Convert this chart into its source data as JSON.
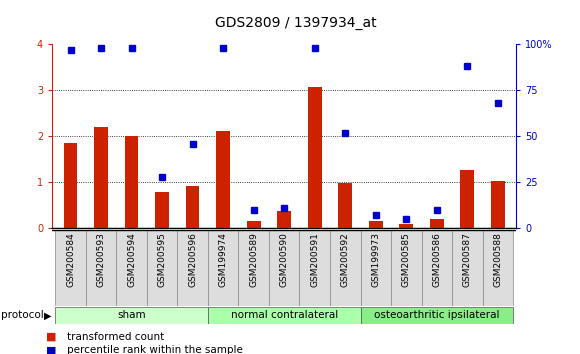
{
  "title": "GDS2809 / 1397934_at",
  "samples": [
    "GSM200584",
    "GSM200593",
    "GSM200594",
    "GSM200595",
    "GSM200596",
    "GSM199974",
    "GSM200589",
    "GSM200590",
    "GSM200591",
    "GSM200592",
    "GSM199973",
    "GSM200585",
    "GSM200586",
    "GSM200587",
    "GSM200588"
  ],
  "red_values": [
    1.85,
    2.2,
    2.0,
    0.78,
    0.93,
    2.12,
    0.15,
    0.38,
    3.07,
    0.98,
    0.15,
    0.1,
    0.2,
    1.27,
    1.02
  ],
  "blue_values_pct": [
    97,
    98,
    98,
    28,
    46,
    98,
    10,
    11,
    98,
    52,
    7,
    5,
    10,
    88,
    68
  ],
  "groups": [
    {
      "label": "sham",
      "start": 0,
      "end": 5
    },
    {
      "label": "normal contralateral",
      "start": 5,
      "end": 10
    },
    {
      "label": "osteoarthritic ipsilateral",
      "start": 10,
      "end": 15
    }
  ],
  "group_colors": [
    "#ccffcc",
    "#aaffaa",
    "#88ee88"
  ],
  "ylim_left": [
    0,
    4
  ],
  "ylim_right": [
    0,
    100
  ],
  "yticks_left": [
    0,
    1,
    2,
    3,
    4
  ],
  "yticks_right": [
    0,
    25,
    50,
    75,
    100
  ],
  "ytick_labels_right": [
    "0",
    "25",
    "50",
    "75",
    "100%"
  ],
  "red_color": "#cc2200",
  "blue_color": "#0000cc",
  "legend_red": "transformed count",
  "legend_blue": "percentile rank within the sample",
  "title_fontsize": 10,
  "tick_fontsize": 7,
  "label_fontsize": 6.5,
  "proto_fontsize": 7.5
}
